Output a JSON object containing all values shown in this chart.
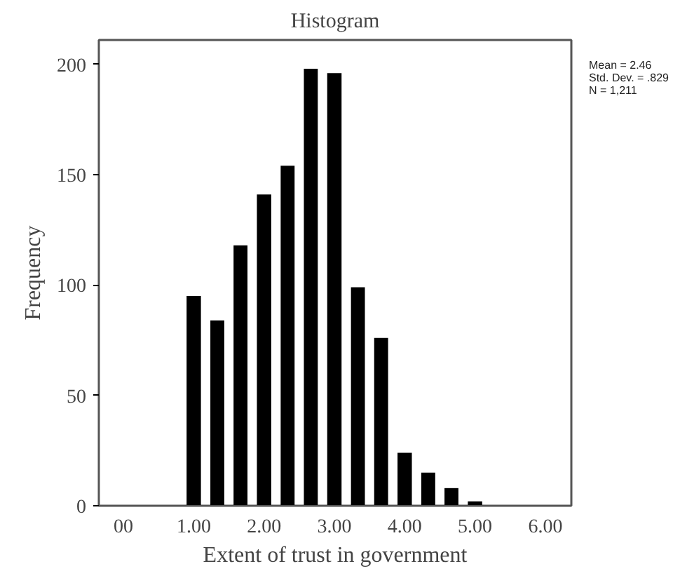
{
  "chart_data": {
    "type": "histogram",
    "title": "Histogram",
    "xlabel": "Extent of trust in government",
    "ylabel": "Frequency",
    "bins": [
      0.83,
      1.17,
      1.5,
      1.83,
      2.17,
      2.5,
      2.83,
      3.17,
      3.5,
      3.83,
      4.17,
      4.5,
      4.83,
      5.17
    ],
    "values": [
      95,
      84,
      118,
      141,
      154,
      198,
      196,
      99,
      76,
      24,
      15,
      8,
      2
    ],
    "color": "#000000",
    "xlim": [
      -0.35,
      6.37
    ],
    "ylim": [
      0,
      211
    ],
    "xticks": [
      {
        "value": 0,
        "label": "00"
      },
      {
        "value": 1,
        "label": "1.00"
      },
      {
        "value": 2,
        "label": "2.00"
      },
      {
        "value": 3,
        "label": "3.00"
      },
      {
        "value": 4,
        "label": "4.00"
      },
      {
        "value": 5,
        "label": "5.00"
      },
      {
        "value": 6,
        "label": "6.00"
      }
    ],
    "yticks": [
      0,
      50,
      100,
      150,
      200
    ],
    "grid": false,
    "annotations": [
      "Mean = 2.46",
      "Std. Dev. = .829",
      "N = 1,211"
    ]
  }
}
